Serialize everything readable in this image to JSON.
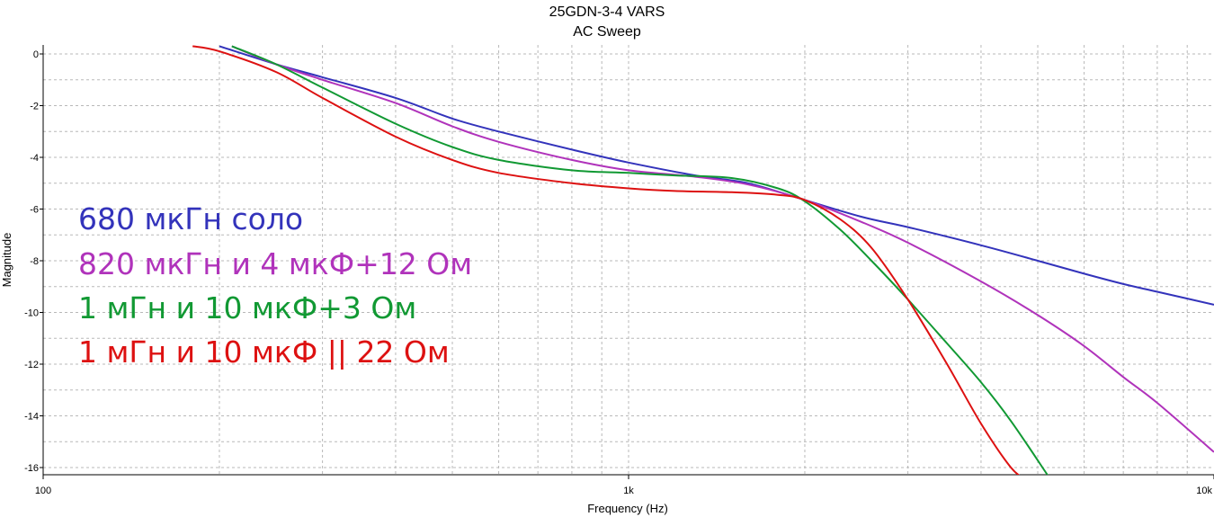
{
  "chart_data": {
    "type": "line",
    "title": "25GDN-3-4 VARS",
    "subtitle": "AC Sweep",
    "xlabel": "Frequency (Hz)",
    "ylabel": "Magnitude",
    "x_scale": "log",
    "xlim": [
      100,
      10000
    ],
    "ylim": [
      -16,
      0
    ],
    "x_ticks": [
      100,
      1000,
      10000
    ],
    "x_tick_labels": [
      "100",
      "1k",
      "10k"
    ],
    "y_ticks": [
      0,
      -2,
      -4,
      -6,
      -8,
      -10,
      -12,
      -14,
      -16
    ],
    "y_tick_labels": [
      "0",
      "-2",
      "-4",
      "-6",
      "-8",
      "-10",
      "-12",
      "-14",
      "-16"
    ],
    "grid": true,
    "legend_position": "left",
    "series": [
      {
        "name": "680 мкГн соло",
        "color": "#3333bb",
        "x": [
          200,
          250,
          300,
          400,
          500,
          600,
          800,
          1000,
          1300,
          1600,
          2000,
          2500,
          3000,
          4000,
          5000,
          6000,
          7000,
          8000,
          10000
        ],
        "y": [
          0.3,
          -0.4,
          -0.9,
          -1.7,
          -2.5,
          -3.0,
          -3.7,
          -4.2,
          -4.7,
          -5.0,
          -5.65,
          -6.3,
          -6.7,
          -7.4,
          -8.0,
          -8.5,
          -8.9,
          -9.2,
          -9.7
        ]
      },
      {
        "name": "820 мкГн и 4 мкФ+12 Ом",
        "color": "#b033bb",
        "x": [
          210,
          250,
          300,
          400,
          500,
          600,
          800,
          1000,
          1300,
          1600,
          2000,
          2500,
          3000,
          4000,
          5000,
          6000,
          7000,
          8000,
          10000
        ],
        "y": [
          0.3,
          -0.4,
          -1.0,
          -1.9,
          -2.8,
          -3.4,
          -4.1,
          -4.5,
          -4.75,
          -5.05,
          -5.65,
          -6.5,
          -7.3,
          -8.8,
          -10.1,
          -11.3,
          -12.5,
          -13.5,
          -15.4
        ]
      },
      {
        "name": "1 мГн и 10 мкФ+3 Ом",
        "color": "#119933",
        "x": [
          210,
          250,
          300,
          400,
          500,
          600,
          800,
          1000,
          1200,
          1500,
          1800,
          2000,
          2300,
          2600,
          3000,
          3500,
          4000,
          4500,
          5200
        ],
        "y": [
          0.3,
          -0.4,
          -1.3,
          -2.7,
          -3.6,
          -4.1,
          -4.5,
          -4.6,
          -4.7,
          -4.8,
          -5.2,
          -5.7,
          -6.8,
          -8.0,
          -9.5,
          -11.2,
          -12.7,
          -14.2,
          -16.3
        ]
      },
      {
        "name": "1 мГн и 10 мкФ || 22 Ом",
        "color": "#dd1111",
        "x": [
          180,
          200,
          250,
          300,
          400,
          500,
          600,
          800,
          1000,
          1200,
          1500,
          1800,
          2000,
          2300,
          2600,
          3000,
          3500,
          4000,
          4500,
          4800
        ],
        "y": [
          0.3,
          0.1,
          -0.7,
          -1.7,
          -3.2,
          -4.1,
          -4.6,
          -5.0,
          -5.2,
          -5.3,
          -5.35,
          -5.45,
          -5.65,
          -6.4,
          -7.5,
          -9.5,
          -12.0,
          -14.3,
          -16.0,
          -16.5
        ]
      }
    ]
  }
}
